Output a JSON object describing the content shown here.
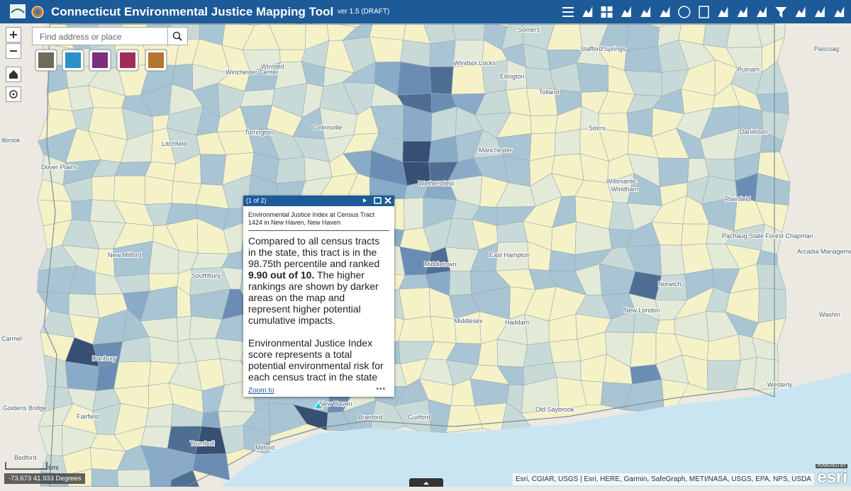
{
  "header": {
    "title": "Connecticut Environmental Justice Mapping Tool",
    "version": "ver 1.5 (DRAFT)"
  },
  "search": {
    "placeholder": "Find address or place"
  },
  "popup": {
    "pager": "(1 of 2)",
    "title": "Environmental Justice Index at Census Tract 1424 in New Haven, New Haven",
    "body_before": "Compared to all census tracts in the state, this tract is in the 98.75th percentile and ranked",
    "body_bold": "9.90 out of 10.",
    "body_after": "The higher rankings are shown by darker areas on the map and represent higher potential cumulative impacts.",
    "paragraph2": "Environmental Justice Index score represents a total potential environmental risk for each census tract in the state",
    "zoom": "Zoom to"
  },
  "map_labels": [
    "Somers",
    "Stafford Springs",
    "Pascoag",
    "Winsted",
    "Winchester Center",
    "Windsor Locks",
    "Ellington",
    "Putnam",
    "Tolland",
    "Torrington",
    "Collinsville",
    "Storrs",
    "Danielson",
    "llbrook",
    "Manchester",
    "Dover Plains",
    "Wethersfield",
    "Willimantic",
    "Windham",
    "Plainfield",
    "Pachaug State Forest Chapman",
    "Arcadia Management Area",
    "New Milford",
    "Middletown",
    "East Hampton",
    "Southbury",
    "Norwich",
    "New London",
    "Washin",
    "Middlesex",
    "Haddam",
    "Carmel",
    "Danbury",
    "Westerly",
    "Goldens Bridge",
    "Old Saybrook",
    "Fairfield",
    "Branford",
    "Guilford",
    "New Haven",
    "Trumbull",
    "Bedford",
    "Milford",
    "Litchfield"
  ],
  "footer": {
    "coordinates": "-73.673 41.933 Degrees",
    "scale": "6mi",
    "attribution": "Esri, CGIAR, USGS | Esri, HERE, Garmin, SafeGraph, METI/NASA, USGS, EPA, NPS, USDA",
    "powered": "POWERED BY",
    "logo": "esri"
  }
}
